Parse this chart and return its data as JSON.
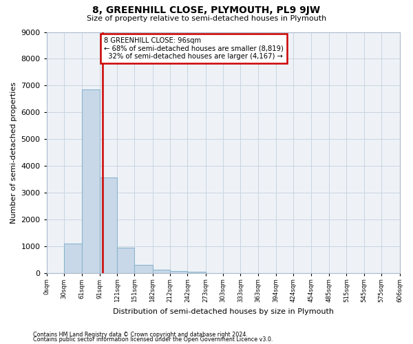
{
  "title": "8, GREENHILL CLOSE, PLYMOUTH, PL9 9JW",
  "subtitle": "Size of property relative to semi-detached houses in Plymouth",
  "xlabel": "Distribution of semi-detached houses by size in Plymouth",
  "ylabel": "Number of semi-detached properties",
  "property_size": 96,
  "property_label": "8 GREENHILL CLOSE: 96sqm",
  "pct_smaller": 68,
  "count_smaller": 8819,
  "pct_larger": 32,
  "count_larger": 4167,
  "total_bins": 20,
  "x_max": 606,
  "bar_values": [
    0,
    1100,
    6850,
    3580,
    960,
    310,
    130,
    90,
    60,
    0,
    0,
    0,
    0,
    0,
    0,
    0,
    0,
    0,
    0,
    0
  ],
  "bar_color": "#c8d8e8",
  "bar_edge_color": "#8ab4cc",
  "vline_x": 96,
  "vline_color": "#cc0000",
  "annotation_box_color": "#cc0000",
  "grid_color": "#c8d4e0",
  "background_color": "#eef2f7",
  "ylim": [
    0,
    9000
  ],
  "yticks": [
    0,
    1000,
    2000,
    3000,
    4000,
    5000,
    6000,
    7000,
    8000,
    9000
  ],
  "tick_labels": [
    "0sqm",
    "30sqm",
    "61sqm",
    "91sqm",
    "121sqm",
    "151sqm",
    "182sqm",
    "212sqm",
    "242sqm",
    "273sqm",
    "303sqm",
    "333sqm",
    "363sqm",
    "394sqm",
    "424sqm",
    "454sqm",
    "485sqm",
    "515sqm",
    "545sqm",
    "575sqm",
    "606sqm"
  ],
  "footnote1": "Contains HM Land Registry data © Crown copyright and database right 2024.",
  "footnote2": "Contains public sector information licensed under the Open Government Licence v3.0."
}
